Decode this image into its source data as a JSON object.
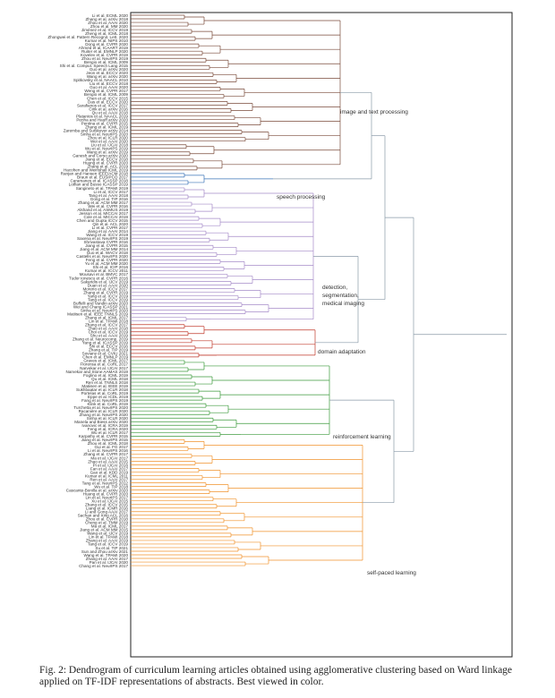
{
  "colors": {
    "image_text": "#7a4a3a",
    "speech": "#3b74b8",
    "detection": "#a58bc8",
    "domain": "#c0392b",
    "reinforcement": "#3c9a3c",
    "selfpaced": "#f0922b",
    "root": "#8a9aa8"
  },
  "cluster_labels": {
    "image_text": "image and text processing",
    "speech": "speech processing",
    "detection_line1": "detection,",
    "detection_line2": "segmentation,",
    "detection_line3": "medical imaging",
    "domain": "domain adaptation",
    "reinforcement": "reinforcement learning",
    "selfpaced": "self-paced learning"
  },
  "leaves": {
    "image_text": [
      "Li et al. ECML 2020",
      "Zhang et al. arXiv 2018",
      "Zhou et al. AAAI 2020",
      "Zhou et al. MM 2020",
      "Jiménez et al. ICCV 2019",
      "Zheng et al. ICML 2018",
      "Zhongwei et al. Pattern Recognit. Lett. 2020",
      "Kumar et al. NIPS 2010",
      "Dong et al. CVPR 2020",
      "Ahmed et al. ICAART 2019",
      "Ruiter et al. EMNLP 2020",
      "Kovelev et al. CVPR 2019",
      "Zhou et al. NeurIPS 2019",
      "Bengio et al. ICML 2009",
      "Shi et al. Comput. Speech Lang 2015",
      "Guo et al. arXiv 2020",
      "Jeon et al. ECCV 2020",
      "Wang et al. arXiv 2020",
      "Spitkovsky et al. NAACL 2010",
      "Liu et al. ECCV 2018",
      "Guo et al. AAAI 2020",
      "Weng et al. CVPR 2017",
      "Bengio et al. ICML 2009",
      "Chen et al. ICCV 2015",
      "Das et al. ECCV 2020",
      "Sarafianos et al. ICCV 2017",
      "Cirik et al. arXiv 2016",
      "Qu et al. AAAI 2018",
      "Platanios et al. NAACL 2019",
      "Penha and Hauff arXiv 2020",
      "Pentina et al. CVPR 2015",
      "Zhang et al. ICML 2019",
      "Zaremba and Sutskever arXiv 2014",
      "Sinha et al. NeurIPS 2020",
      "Zhou et al. ICLR 2020",
      "Wei et al. AAAI 2020",
      "Liu et al. IJCAI 2018",
      "Wu et al. NeurIPS 2019",
      "Wang et al. arXiv 2019",
      "Ganesh and Corso arXiv 2020",
      "Jiang et al. ECCV 2018",
      "Huang et al. CVPR 2020",
      "Zhang et al. ACL 2019",
      "Hacohen and Weinshall ICML 2019"
    ],
    "speech": [
      "Ranjan and Hansen IEEE/ACM 2018",
      "Braun et al. EUSIPCO 2017",
      "Caramanes et al. ICASSP 2018",
      "Lotfian and Busso ICASSP 2019"
    ],
    "detection": [
      "Sangineto et al. TPAMI 2019",
      "Li et al. ICCV 2017",
      "Tang et al. AAAI 2018",
      "Gong et al. TIP 2016",
      "Zhang et al. ACM MM 2017",
      "Wei et al. CVPR 2016",
      "Alsharid et al. ASMUS 2019",
      "Jesson et al. MICCAI 2017",
      "Cole et al. MICCAI 2019",
      "Chen and Gupta ICCV 2015",
      "Qin et al. ACL 2020",
      "Li et al. CVPR 2017",
      "Jiang et al. AAAI 2014",
      "Wang et al. ICCV 2019",
      "Saxena et al. NeurIPS 2019",
      "Shrivastava CVPR 2016",
      "Jiang et al. CVPR 2015",
      "Jiang et al. ACM MM 2014",
      "Guo et al. WACV 2018",
      "Castells et al. NeurIPS 2020",
      "Feng et al. CVPR 2020",
      "Yu et al. ACM MM 2020",
      "Shi et al. ICIP 2016",
      "Kumar et al. ICCV 2011",
      "Mousavi et al. BMVC 2017",
      "Tudor Ionescu et al. CVPR 2016",
      "Sakaridis et al. IJCV 2019",
      "Duan et al. AAAI 2020",
      "Morerio et al. ICCV 2017",
      "Zhang et al. CVPR 2019",
      "Yang et al. ICCV 2019",
      "Tang et al. ICCV 2019",
      "Buffelli and Vandin arXiv 2020",
      "Wei and Chang ICASSP 2021",
      "Sinha et al. NeurIPS 2020",
      "Matiisen et al. IEEE TNNLS 2019",
      "Zhang et al. ICML 2017",
      "Lin et al. TPAMI 2018"
    ],
    "domain": [
      "Zhang et al. ICCV 2017",
      "Zhao et al. AAAI 2018",
      "Choi et al. ICCV 2019",
      "Shu et al. AAAI 2019",
      "Zhang et al. Neurocomp. 2019",
      "Yang et al. ICASSP 2019",
      "Shi et al. ECCV 2016",
      "Zhang et al. TIP 2019",
      "Soviany et al. CVIU 2021",
      "Chen et al. EMNLP 2019"
    ],
    "reinforcement": [
      "Graves et al. ICML 2017",
      "Florensa et al. CoRL 2017",
      "Narvekar et al. IJCAI 2017",
      "Narvekar and Stone AAMAS 2019",
      "Foglino et al. ICML 2019",
      "Qu et al. ICML 2018",
      "Ren et al. TNNLS 2018",
      "Matiisen et al. IEEE 2019",
      "Sukhbaatar et al. ICLR 2018",
      "Portelas et al. CoRL 2019",
      "Eppe et al. ICDL 2019",
      "Fang et al. NeurIPS 2019",
      "Klink et al. CoRL 2019",
      "Turchetta et al. NeurIPS 2020",
      "Racanière et al. ICLR 2020",
      "Zhang et al. NeurIPS 2020",
      "Sinha et al. ICLR 2020",
      "Manela and Biess arXiv 2020",
      "Ivanovic et al. ICRA 2019",
      "Feng et al. ICRA 2020",
      "Wu et al. ICLR 2017",
      "Karpathy et al. CVPR 2015"
    ],
    "selfpaced": [
      "Jiang et al. NeurIPS 2015",
      "Zhou et al. ICML 2018",
      "Gui et al. FG 2017",
      "Li et al. NeurIPS 2016",
      "Zhang et al. CVPR 2017",
      "Ma et al. IJCAI 2017",
      "Zhao et al. AAAI 2015",
      "Pi et al. IJCAI 2016",
      "Fan et al. AAAI 2017",
      "Gao et al. KDD 2019",
      "Kumar et al. ICML 2011",
      "Ren et al. AAAI 2017",
      "Tang et al. NeurIPS 2012",
      "Wu et al. TIP 2018",
      "Cascante-Bonilla et al. arXiv 2020",
      "Huang et al. CVPR 2020",
      "Lin et al. NeurIPS 2017",
      "Xu et al. IJCAI 2015",
      "Zhang et al. ICCV 2015",
      "Liang et al. ICMR 2016",
      "Li and Gong AAAI 2017",
      "Sachan and Xing ACL 2016",
      "Zhou et al. CVPR 2018",
      "Cheng et al. TMM 2019",
      "Ma et al. ICML 2017",
      "Jiang et al. ACM MM 2015",
      "Wang et al. IJCV 2019",
      "Lin et al. TPAMI 2018",
      "Zhang et al. AAAI 2019",
      "Tang et al. ICCV 2019",
      "Xu et al. TIP 2021",
      "Sun and Zhou arXiv 2021",
      "Wang et al. TPAMI 2020",
      "Zhang et al. AAAI 2017",
      "Pan et al. IJCAI 2020",
      "Chang et al. NeurIPS 2017"
    ]
  },
  "caption": "Fig. 2: Dendrogram of curriculum learning articles obtained using agglomerative clustering based on Ward linkage applied on TF-IDF representations of abstracts. Best viewed in color."
}
